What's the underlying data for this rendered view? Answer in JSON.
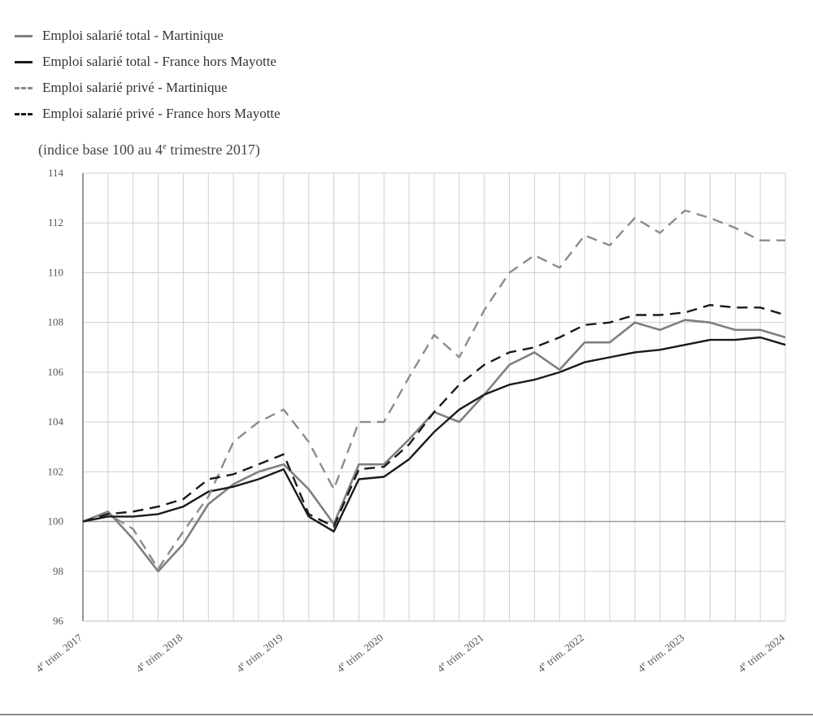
{
  "chart_data": {
    "type": "line",
    "subtitle_prefix": "(indice base 100 au 4",
    "subtitle_sup": "e",
    "subtitle_suffix": " trimestre 2017)",
    "ylim": [
      96,
      114
    ],
    "yticks": [
      96,
      98,
      100,
      102,
      104,
      106,
      108,
      110,
      112,
      114
    ],
    "grid": true,
    "legend_position": "top-left",
    "x": [
      "T4 2017",
      "T1 2018",
      "T2 2018",
      "T3 2018",
      "T4 2018",
      "T1 2019",
      "T2 2019",
      "T3 2019",
      "T4 2019",
      "T1 2020",
      "T2 2020",
      "T3 2020",
      "T4 2020",
      "T1 2021",
      "T2 2021",
      "T3 2021",
      "T4 2021",
      "T1 2022",
      "T2 2022",
      "T3 2022",
      "T4 2022",
      "T1 2023",
      "T2 2023",
      "T3 2023",
      "T4 2023",
      "T1 2024",
      "T2 2024",
      "T3 2024",
      "T4 2024"
    ],
    "xtick_labels": [
      {
        "index": 0,
        "sup": "e",
        "text": " trim. 2017",
        "prefix": "4"
      },
      {
        "index": 4,
        "sup": "e",
        "text": " trim. 2018",
        "prefix": "4"
      },
      {
        "index": 8,
        "sup": "e",
        "text": " trim. 2019",
        "prefix": "4"
      },
      {
        "index": 12,
        "sup": "e",
        "text": " trim. 2020",
        "prefix": "4"
      },
      {
        "index": 16,
        "sup": "e",
        "text": " trim. 2021",
        "prefix": "4"
      },
      {
        "index": 20,
        "sup": "e",
        "text": " trim. 2022",
        "prefix": "4"
      },
      {
        "index": 24,
        "sup": "e",
        "text": " trim. 2023",
        "prefix": "4"
      },
      {
        "index": 28,
        "sup": "e",
        "text": " trim. 2024",
        "prefix": "4"
      }
    ],
    "series": [
      {
        "name": "Emploi salarié total - Martinique",
        "color": "#7f7f7f",
        "dash": "solid",
        "values": [
          100.0,
          100.4,
          99.3,
          98.0,
          99.1,
          100.7,
          101.5,
          102.0,
          102.3,
          101.3,
          99.9,
          102.3,
          102.3,
          103.3,
          104.4,
          104.0,
          105.1,
          106.3,
          106.8,
          106.1,
          107.2,
          107.2,
          108.0,
          107.7,
          108.1,
          108.0,
          107.7,
          107.7,
          107.4
        ]
      },
      {
        "name": "Emploi salarié total - France hors Mayotte",
        "color": "#1a1a1a",
        "dash": "solid",
        "values": [
          100.0,
          100.2,
          100.2,
          100.3,
          100.6,
          101.2,
          101.4,
          101.7,
          102.1,
          100.2,
          99.6,
          101.7,
          101.8,
          102.5,
          103.6,
          104.5,
          105.1,
          105.5,
          105.7,
          106.0,
          106.4,
          106.6,
          106.8,
          106.9,
          107.1,
          107.3,
          107.3,
          107.4,
          107.1
        ]
      },
      {
        "name": "Emploi salarié privé - Martinique",
        "color": "#8c8c8c",
        "dash": "dashed",
        "values": [
          100.0,
          100.3,
          99.7,
          98.1,
          99.6,
          101.0,
          103.2,
          104.0,
          104.5,
          103.2,
          101.3,
          104.0,
          104.0,
          105.8,
          107.5,
          106.6,
          108.5,
          110.0,
          110.7,
          110.2,
          111.5,
          111.1,
          112.2,
          111.6,
          112.5,
          112.2,
          111.8,
          111.3,
          111.3
        ]
      },
      {
        "name": "Emploi salarié privé - France hors Mayotte",
        "color": "#1a1a1a",
        "dash": "dashed",
        "values": [
          100.0,
          100.3,
          100.4,
          100.6,
          100.9,
          101.7,
          101.9,
          102.3,
          102.7,
          100.3,
          99.8,
          102.1,
          102.2,
          103.1,
          104.4,
          105.5,
          106.3,
          106.8,
          107.0,
          107.4,
          107.9,
          108.0,
          108.3,
          108.3,
          108.4,
          108.7,
          108.6,
          108.6,
          108.3
        ]
      }
    ]
  }
}
